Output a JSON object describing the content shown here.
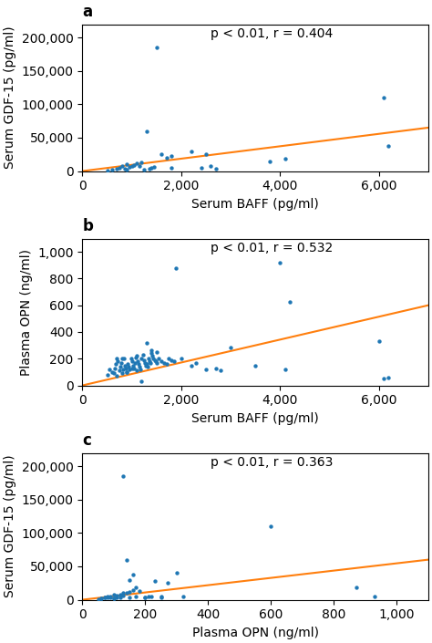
{
  "chart_data": [
    {
      "type": "scatter",
      "label": "a",
      "x_label": "Serum BAFF (pg/ml)",
      "y_label": "Serum GDF-15 (pg/ml)",
      "annotation": "p < 0.01, r = 0.404",
      "xlim": [
        0,
        7000
      ],
      "ylim": [
        0,
        220000
      ],
      "xticks": [
        0,
        {
          "value": 2000,
          "label": "2,000"
        },
        {
          "value": 4000,
          "label": "4,000"
        },
        {
          "value": 6000,
          "label": "6,000"
        }
      ],
      "yticks": [
        0,
        {
          "value": 50000,
          "label": "50,000"
        },
        {
          "value": 100000,
          "label": "100,000"
        },
        {
          "value": 150000,
          "label": "150,000"
        },
        {
          "value": 200000,
          "label": "200,000"
        }
      ],
      "series": [
        {
          "type": "scatter",
          "x": [
            500,
            600,
            700,
            750,
            800,
            850,
            900,
            950,
            1000,
            1050,
            1100,
            1150,
            1200,
            1250,
            1300,
            1350,
            1400,
            1450,
            1500,
            1600,
            1700,
            1800,
            900,
            1800,
            2200,
            2400,
            2500,
            2600,
            2700,
            3800,
            4100,
            6100,
            6200
          ],
          "values": [
            1000,
            2000,
            3000,
            5000,
            8000,
            4000,
            10000,
            6000,
            7000,
            9000,
            12000,
            8000,
            13000,
            2000,
            60000,
            4000,
            5000,
            6000,
            185000,
            25000,
            20000,
            5000,
            2000,
            22000,
            30000,
            5000,
            25000,
            8000,
            3000,
            15000,
            18000,
            110000,
            38000
          ]
        },
        {
          "type": "line",
          "x": [
            0,
            7000
          ],
          "values": [
            0,
            65000
          ]
        }
      ]
    },
    {
      "type": "scatter",
      "label": "b",
      "x_label": "Serum BAFF (pg/ml)",
      "y_label": "Plasma OPN (ng/ml)",
      "annotation": "p < 0.01, r = 0.532",
      "xlim": [
        0,
        7000
      ],
      "ylim": [
        0,
        1100
      ],
      "xticks": [
        0,
        {
          "value": 2000,
          "label": "2,000"
        },
        {
          "value": 4000,
          "label": "4,000"
        },
        {
          "value": 6000,
          "label": "6,000"
        }
      ],
      "yticks": [
        0,
        200,
        400,
        600,
        800,
        {
          "value": 1000,
          "label": "1,000"
        }
      ],
      "series": [
        {
          "type": "scatter",
          "x": [
            500,
            550,
            600,
            640,
            660,
            680,
            700,
            720,
            740,
            760,
            780,
            800,
            820,
            840,
            860,
            880,
            900,
            920,
            940,
            960,
            980,
            1000,
            1020,
            1040,
            1060,
            1080,
            1100,
            1120,
            1140,
            1160,
            1180,
            1200,
            1220,
            1240,
            1260,
            1280,
            1300,
            1320,
            1340,
            1360,
            1380,
            1400,
            1420,
            1440,
            1460,
            1480,
            1500,
            1550,
            1600,
            1650,
            1700,
            1750,
            1800,
            1850,
            1900,
            1200,
            2200,
            2500,
            2800,
            3000,
            3500,
            4000,
            4200,
            6000,
            6100,
            6200,
            700,
            800,
            900,
            1000,
            1100,
            1300,
            1400,
            1500,
            2000,
            2300,
            2700,
            4100
          ],
          "values": [
            80,
            120,
            100,
            90,
            130,
            160,
            200,
            180,
            110,
            140,
            170,
            90,
            120,
            200,
            150,
            130,
            100,
            160,
            140,
            120,
            200,
            180,
            150,
            130,
            170,
            210,
            220,
            180,
            160,
            140,
            120,
            200,
            230,
            190,
            170,
            150,
            160,
            140,
            200,
            180,
            170,
            240,
            220,
            200,
            190,
            180,
            170,
            200,
            180,
            170,
            160,
            200,
            190,
            180,
            880,
            30,
            150,
            120,
            110,
            285,
            145,
            920,
            625,
            330,
            50,
            60,
            70,
            200,
            100,
            130,
            110,
            320,
            260,
            250,
            200,
            170,
            130,
            120
          ]
        },
        {
          "type": "line",
          "x": [
            0,
            7000
          ],
          "values": [
            0,
            600
          ]
        }
      ]
    },
    {
      "type": "scatter",
      "label": "c",
      "x_label": "Plasma OPN (ng/ml)",
      "y_label": "Serum GDF-15 (pg/ml)",
      "annotation": "p < 0.01, r = 0.363",
      "xlim": [
        0,
        1100
      ],
      "ylim": [
        0,
        220000
      ],
      "xticks": [
        0,
        200,
        400,
        600,
        800,
        {
          "value": 1000,
          "label": "1,000"
        }
      ],
      "yticks": [
        0,
        {
          "value": 50000,
          "label": "50,000"
        },
        {
          "value": 100000,
          "label": "100,000"
        },
        {
          "value": 150000,
          "label": "150,000"
        },
        {
          "value": 200000,
          "label": "200,000"
        }
      ],
      "series": [
        {
          "type": "scatter",
          "x": [
            50,
            60,
            70,
            80,
            90,
            100,
            110,
            120,
            130,
            140,
            150,
            160,
            170,
            180,
            100,
            110,
            120,
            130,
            130,
            140,
            150,
            160,
            170,
            200,
            210,
            230,
            250,
            270,
            300,
            320,
            600,
            870,
            930,
            60,
            70,
            80,
            90,
            100,
            150,
            200,
            220,
            250
          ],
          "values": [
            1000,
            2000,
            3000,
            5000,
            4000,
            7000,
            6000,
            8000,
            10000,
            11000,
            12000,
            15000,
            18000,
            13000,
            2000,
            3000,
            4000,
            6000,
            185000,
            60000,
            30000,
            38000,
            5000,
            3000,
            5000,
            28000,
            5000,
            25000,
            40000,
            5000,
            110000,
            18000,
            5000,
            2000,
            3000,
            4000,
            5000,
            2000,
            3000,
            4000,
            5000,
            3000
          ]
        },
        {
          "type": "line",
          "x": [
            0,
            1100
          ],
          "values": [
            0,
            60000
          ]
        }
      ]
    }
  ]
}
